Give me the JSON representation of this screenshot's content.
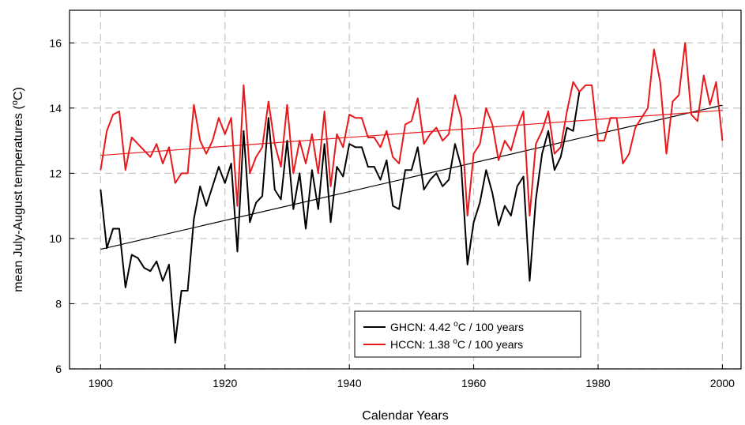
{
  "chart_data": {
    "type": "line",
    "xlabel": "Calendar Years",
    "ylabel_main": "mean July-August temperatures (",
    "ylabel_sup": "o",
    "ylabel_tail": "C)",
    "xlim": [
      1895,
      2003
    ],
    "ylim": [
      6,
      17
    ],
    "xticks": [
      1900,
      1920,
      1940,
      1960,
      1980,
      2000
    ],
    "yticks": [
      6,
      8,
      10,
      12,
      14,
      16
    ],
    "grid": true,
    "legend_position": "bottom-center",
    "series": [
      {
        "key": "ghcn",
        "legend_main": "GHCN: 4.42 ",
        "legend_sup": "o",
        "legend_tail": "C / 100 years",
        "color": "#000000",
        "x": [
          1900,
          1901,
          1902,
          1903,
          1904,
          1905,
          1906,
          1907,
          1908,
          1909,
          1910,
          1911,
          1912,
          1913,
          1914,
          1915,
          1916,
          1917,
          1918,
          1919,
          1920,
          1921,
          1922,
          1923,
          1924,
          1925,
          1926,
          1927,
          1928,
          1929,
          1930,
          1931,
          1932,
          1933,
          1934,
          1935,
          1936,
          1937,
          1938,
          1939,
          1940,
          1941,
          1942,
          1943,
          1944,
          1945,
          1946,
          1947,
          1948,
          1949,
          1950,
          1951,
          1952,
          1953,
          1954,
          1955,
          1956,
          1957,
          1958,
          1959,
          1960,
          1961,
          1962,
          1963,
          1964,
          1965,
          1966,
          1967,
          1968,
          1969,
          1970,
          1971,
          1972,
          1973,
          1974,
          1975,
          1976,
          1977
        ],
        "y": [
          11.5,
          9.7,
          10.3,
          10.3,
          8.5,
          9.5,
          9.4,
          9.1,
          9.0,
          9.3,
          8.7,
          9.2,
          6.8,
          8.4,
          8.4,
          10.6,
          11.6,
          11.0,
          11.6,
          12.2,
          11.7,
          12.3,
          9.6,
          13.3,
          10.5,
          11.1,
          11.3,
          13.7,
          11.5,
          11.2,
          13.0,
          10.9,
          12.0,
          10.3,
          12.1,
          10.9,
          12.9,
          10.5,
          12.2,
          11.9,
          12.9,
          12.8,
          12.8,
          12.2,
          12.2,
          11.8,
          12.4,
          11.0,
          10.9,
          12.1,
          12.1,
          12.8,
          11.5,
          11.8,
          12.0,
          11.6,
          11.8,
          12.9,
          12.2,
          9.2,
          10.5,
          11.1,
          12.1,
          11.4,
          10.4,
          11.0,
          10.7,
          11.6,
          11.9,
          8.7,
          11.2,
          12.6,
          13.3,
          12.1,
          12.5,
          13.4,
          13.3,
          14.5
        ],
        "trend": [
          [
            1900,
            9.67
          ],
          [
            2000,
            14.09
          ]
        ]
      },
      {
        "key": "hccn",
        "legend_main": "HCCN: 1.38 ",
        "legend_sup": "o",
        "legend_tail": "C / 100 years",
        "color": "#e8191c",
        "x": [
          1900,
          1901,
          1902,
          1903,
          1904,
          1905,
          1906,
          1907,
          1908,
          1909,
          1910,
          1911,
          1912,
          1913,
          1914,
          1915,
          1916,
          1917,
          1918,
          1919,
          1920,
          1921,
          1922,
          1923,
          1924,
          1925,
          1926,
          1927,
          1928,
          1929,
          1930,
          1931,
          1932,
          1933,
          1934,
          1935,
          1936,
          1937,
          1938,
          1939,
          1940,
          1941,
          1942,
          1943,
          1944,
          1945,
          1946,
          1947,
          1948,
          1949,
          1950,
          1951,
          1952,
          1953,
          1954,
          1955,
          1956,
          1957,
          1958,
          1959,
          1960,
          1961,
          1962,
          1963,
          1964,
          1965,
          1966,
          1967,
          1968,
          1969,
          1970,
          1971,
          1972,
          1973,
          1974,
          1975,
          1976,
          1977,
          1978,
          1979,
          1980,
          1981,
          1982,
          1983,
          1984,
          1985,
          1986,
          1987,
          1988,
          1989,
          1990,
          1991,
          1992,
          1993,
          1994,
          1995,
          1996,
          1997,
          1998,
          1999,
          2000
        ],
        "y": [
          12.1,
          13.3,
          13.8,
          13.9,
          12.1,
          13.1,
          12.9,
          12.7,
          12.5,
          12.9,
          12.3,
          12.8,
          11.7,
          12.0,
          12.0,
          14.1,
          13.0,
          12.6,
          13.0,
          13.7,
          13.2,
          13.7,
          11.0,
          14.7,
          12.0,
          12.5,
          12.8,
          14.2,
          12.9,
          12.2,
          14.1,
          12.0,
          13.0,
          12.3,
          13.2,
          12.0,
          13.9,
          11.6,
          13.2,
          12.8,
          13.8,
          13.7,
          13.7,
          13.1,
          13.1,
          12.8,
          13.3,
          12.5,
          12.3,
          13.5,
          13.6,
          14.3,
          12.9,
          13.2,
          13.4,
          13.0,
          13.2,
          14.4,
          13.7,
          10.7,
          12.6,
          12.9,
          14.0,
          13.5,
          12.4,
          13.0,
          12.7,
          13.4,
          13.9,
          10.7,
          12.9,
          13.3,
          13.9,
          12.6,
          12.8,
          13.9,
          14.8,
          14.5,
          14.7,
          14.7,
          13.0,
          13.0,
          13.7,
          13.7,
          12.3,
          12.6,
          13.4,
          13.7,
          14.0,
          15.8,
          14.8,
          12.6,
          14.2,
          14.4,
          16.0,
          13.8,
          13.6,
          15.0,
          14.1,
          14.8,
          13.0
        ],
        "trend": [
          [
            1900,
            12.55
          ],
          [
            2000,
            13.93
          ]
        ]
      }
    ]
  }
}
